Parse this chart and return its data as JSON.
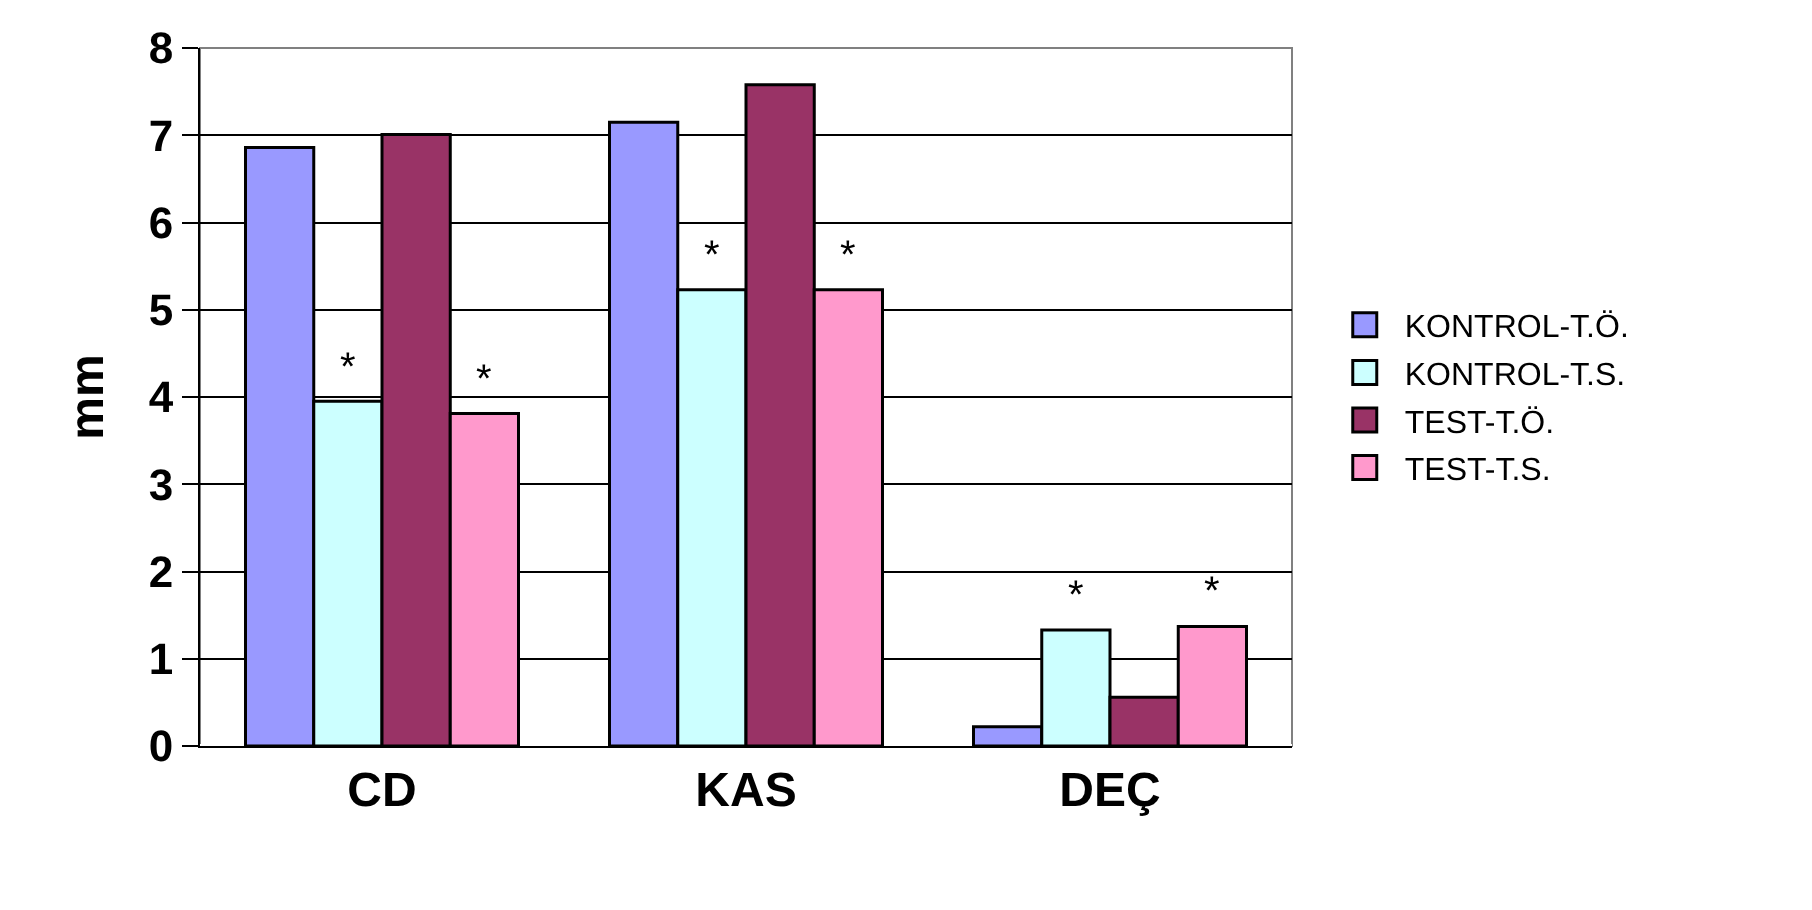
{
  "chart_data": {
    "type": "bar",
    "ylabel": "mm",
    "categories": [
      "CD",
      "KAS",
      "DEÇ"
    ],
    "series": [
      {
        "name": "KONTROL-T.Ö.",
        "color": "#9999ff",
        "values": [
          6.86,
          7.15,
          0.22
        ]
      },
      {
        "name": "KONTROL-T.S.",
        "color": "#ccffff",
        "values": [
          3.95,
          5.23,
          1.33
        ]
      },
      {
        "name": "TEST-T.Ö.",
        "color": "#993366",
        "values": [
          7.01,
          7.58,
          0.56
        ]
      },
      {
        "name": "TEST-T.S.",
        "color": "#ff99cc",
        "values": [
          3.81,
          5.23,
          1.37
        ]
      }
    ],
    "ylim": [
      0,
      8
    ],
    "yticks": [
      0,
      1,
      2,
      3,
      4,
      5,
      6,
      7,
      8
    ],
    "grid": "y",
    "legend": "right",
    "annotations": [
      {
        "text": "*",
        "x": "CD",
        "y": 3.95
      },
      {
        "text": "*",
        "x": "CD",
        "y": 3.81
      },
      {
        "text": "*",
        "x": "KAS",
        "y": 5.23
      },
      {
        "text": "*",
        "x": "KAS",
        "y": 5.23
      },
      {
        "text": "*",
        "x": "DEÇ",
        "y": 1.33
      },
      {
        "text": "*",
        "x": "DEÇ",
        "y": 1.37
      }
    ]
  }
}
